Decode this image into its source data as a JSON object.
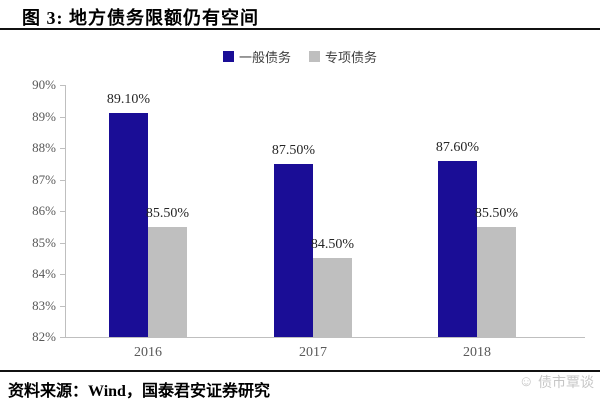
{
  "header": {
    "title": "图 3:  地方债务限额仍有空间"
  },
  "chart_data": {
    "type": "bar",
    "title": "地方债务限额仍有空间",
    "categories": [
      "2016",
      "2017",
      "2018"
    ],
    "series": [
      {
        "name": "一般债务",
        "color": "#1A0D96",
        "values": [
          89.1,
          87.5,
          87.6
        ],
        "labels": [
          "89.10%",
          "87.50%",
          "87.60%"
        ]
      },
      {
        "name": "专项债务",
        "color": "#BFBFBF",
        "values": [
          85.5,
          84.5,
          85.5
        ],
        "labels": [
          "85.50%",
          "84.50%",
          "85.50%"
        ]
      }
    ],
    "xlabel": "",
    "ylabel": "",
    "ylim": [
      82,
      90
    ],
    "ytick_step": 1,
    "ytick_labels": [
      "82%",
      "83%",
      "84%",
      "85%",
      "86%",
      "87%",
      "88%",
      "89%",
      "90%"
    ],
    "grid": false,
    "legend_position": "top",
    "axis_color": "#BFBFBF"
  },
  "footer": {
    "source": "资料来源：Wind，国泰君安证券研究",
    "watermark": "债市覃谈"
  }
}
